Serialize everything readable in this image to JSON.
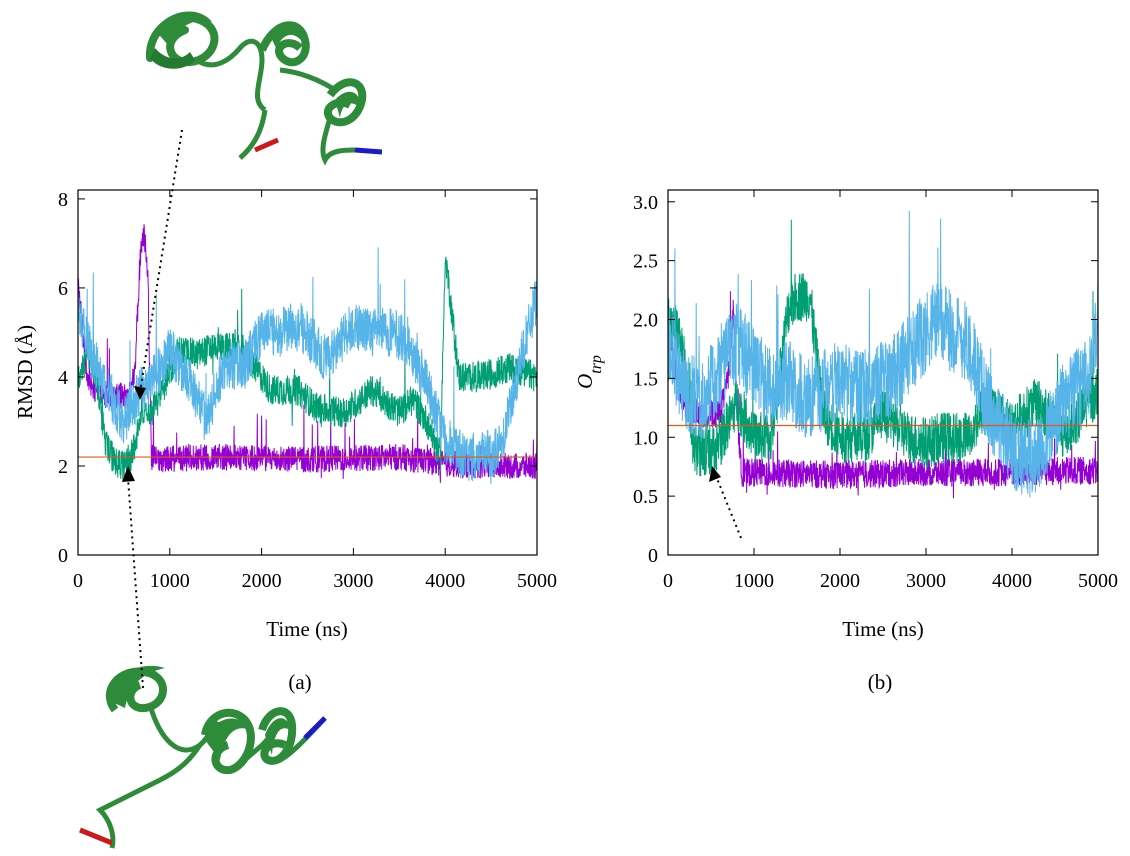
{
  "colors": {
    "series_purple": "#9400d3",
    "series_green": "#009e73",
    "series_skyblue": "#56b4e9",
    "reference_line": "#e05a1a",
    "ribbon": "#2e8b3a",
    "terminus_n": "#1a1acc",
    "terminus_c": "#cc1a1a"
  },
  "icons": [
    "protein-ribbon-top",
    "protein-ribbon-bottom"
  ],
  "chart_data": [
    {
      "type": "line",
      "caption": "(a)",
      "xlabel": "Time (ns)",
      "ylabel": "RMSD (Å)",
      "xlim": [
        0,
        5000
      ],
      "ylim": [
        0,
        8.2
      ],
      "xticks": [
        0,
        1000,
        2000,
        3000,
        4000,
        5000
      ],
      "yticks": [
        0,
        2,
        4,
        6,
        8
      ],
      "xtick_labels": [
        "0",
        "1000",
        "2000",
        "3000",
        "4000",
        "5000"
      ],
      "ytick_labels": [
        "0",
        "2",
        "4",
        "6",
        "8"
      ],
      "reference_line": {
        "y": 2.2
      },
      "series": [
        {
          "color": "purple",
          "noise": 0.3,
          "x": [
            0,
            50,
            100,
            200,
            300,
            450,
            550,
            620,
            680,
            720,
            760,
            800,
            900,
            1500,
            2500,
            3500,
            4000,
            4500,
            5000
          ],
          "y": [
            6.2,
            5.0,
            4.0,
            3.7,
            3.6,
            3.6,
            3.5,
            4.2,
            6.8,
            7.2,
            6.4,
            2.2,
            2.15,
            2.2,
            2.15,
            2.2,
            2.05,
            2.0,
            2.0
          ]
        },
        {
          "color": "green",
          "noise": 0.35,
          "x": [
            0,
            100,
            200,
            300,
            400,
            500,
            600,
            700,
            800,
            900,
            1100,
            1300,
            1500,
            1800,
            2100,
            2400,
            2600,
            2900,
            3200,
            3500,
            3650,
            3800,
            3950,
            4000,
            4150,
            4400,
            4700,
            5000
          ],
          "y": [
            4.0,
            4.5,
            4.0,
            2.5,
            2.1,
            2.0,
            2.3,
            3.3,
            3.2,
            3.6,
            4.6,
            4.5,
            4.7,
            4.6,
            3.7,
            3.7,
            3.3,
            3.2,
            3.7,
            3.2,
            3.5,
            3.0,
            2.2,
            6.8,
            4.0,
            4.0,
            4.2,
            4.0
          ]
        },
        {
          "color": "skyblue",
          "noise": 0.55,
          "x": [
            0,
            150,
            300,
            500,
            650,
            800,
            900,
            1000,
            1200,
            1400,
            1600,
            1800,
            2000,
            2200,
            2400,
            2700,
            3000,
            3200,
            3400,
            3600,
            3800,
            4000,
            4200,
            4400,
            4600,
            4800,
            5000
          ],
          "y": [
            5.5,
            4.5,
            3.8,
            3.0,
            3.6,
            4.0,
            4.2,
            4.6,
            4.0,
            3.0,
            4.3,
            4.2,
            5.0,
            5.0,
            5.2,
            4.4,
            5.2,
            5.0,
            5.0,
            4.8,
            3.8,
            2.6,
            2.2,
            2.2,
            2.4,
            4.2,
            5.8
          ]
        }
      ]
    },
    {
      "type": "line",
      "caption": "(b)",
      "xlabel": "Time (ns)",
      "ylabel": "O",
      "ylabel_sub": "trp",
      "xlim": [
        0,
        5000
      ],
      "ylim": [
        0,
        3.1
      ],
      "xticks": [
        0,
        1000,
        2000,
        3000,
        4000,
        5000
      ],
      "yticks": [
        0,
        0.5,
        1.0,
        1.5,
        2.0,
        2.5,
        3.0
      ],
      "xtick_labels": [
        "0",
        "1000",
        "2000",
        "3000",
        "4000",
        "5000"
      ],
      "ytick_labels": [
        "0",
        "0.5",
        "1.0",
        "1.5",
        "2.0",
        "2.5",
        "3.0"
      ],
      "reference_line": {
        "y": 1.1
      },
      "series": [
        {
          "color": "purple",
          "noise": 0.12,
          "x": [
            0,
            100,
            200,
            400,
            600,
            700,
            760,
            800,
            850,
            1000,
            2000,
            3000,
            4000,
            5000
          ],
          "y": [
            2.0,
            1.5,
            1.25,
            1.2,
            1.2,
            1.5,
            2.1,
            1.3,
            0.7,
            0.7,
            0.68,
            0.7,
            0.7,
            0.72
          ]
        },
        {
          "color": "green",
          "noise": 0.22,
          "x": [
            0,
            100,
            200,
            300,
            450,
            600,
            800,
            1000,
            1200,
            1400,
            1500,
            1650,
            1800,
            2000,
            2300,
            2500,
            2800,
            3000,
            3200,
            3500,
            3700,
            4000,
            4300,
            4600,
            5000
          ],
          "y": [
            2.0,
            1.9,
            1.6,
            0.9,
            0.88,
            0.95,
            1.3,
            1.0,
            1.0,
            2.1,
            2.2,
            2.2,
            1.2,
            1.0,
            1.0,
            1.2,
            1.0,
            0.95,
            1.0,
            1.0,
            1.3,
            1.1,
            1.3,
            1.0,
            1.4
          ]
        },
        {
          "color": "skyblue",
          "noise": 0.35,
          "x": [
            0,
            200,
            400,
            600,
            800,
            1000,
            1200,
            1400,
            1600,
            1800,
            2000,
            2300,
            2600,
            2900,
            3100,
            3300,
            3500,
            3700,
            4000,
            4300,
            4600,
            4900,
            5000
          ],
          "y": [
            1.8,
            1.4,
            1.3,
            1.6,
            1.8,
            1.6,
            1.4,
            1.5,
            1.3,
            1.4,
            1.5,
            1.4,
            1.5,
            1.8,
            2.0,
            1.9,
            1.8,
            1.3,
            0.9,
            0.8,
            1.3,
            1.5,
            2.0
          ]
        }
      ]
    }
  ]
}
